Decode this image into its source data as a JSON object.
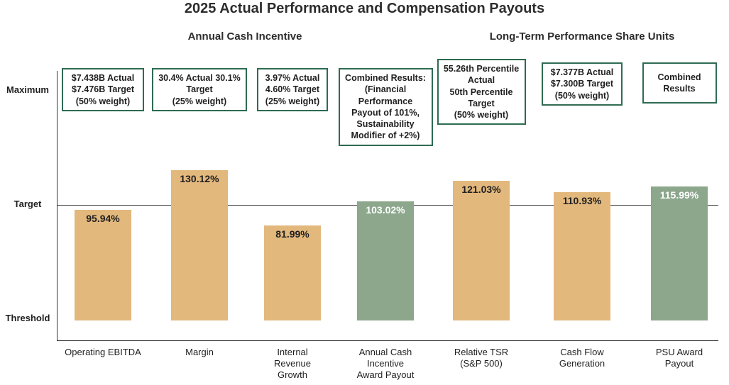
{
  "chart_data": {
    "type": "bar",
    "title": "2025 Actual Performance and Compensation Payouts",
    "groups": [
      {
        "label": "Annual Cash Incentive",
        "bar_categories": [
          "Operating EBITDA",
          "Margin",
          "Internal Revenue Growth",
          "Annual Cash Incentive Award Payout"
        ]
      },
      {
        "label": "Long-Term Performance Share Units",
        "bar_categories": [
          "Relative TSR (S&P 500)",
          "Cash Flow Generation",
          "PSU Award Payout"
        ]
      }
    ],
    "y_axis": {
      "tick_labels": [
        "Maximum",
        "Target",
        "Threshold"
      ]
    },
    "value_axis_mapping": {
      "threshold": 0,
      "target": 100,
      "maximum": 200
    },
    "target_line_at_pct": 100,
    "grid": "off",
    "legend": "none",
    "bars": [
      {
        "category": "Operating EBITDA",
        "value": 95.94,
        "value_label": "95.94%",
        "color": "tan",
        "annotation": "$7.438B Actual\n$7.476B Target\n(50% weight)"
      },
      {
        "category": "Margin",
        "value": 130.12,
        "value_label": "130.12%",
        "color": "tan",
        "annotation": "30.4% Actual 30.1%\nTarget\n(25% weight)"
      },
      {
        "category": "Internal\nRevenue\nGrowth",
        "value": 81.99,
        "value_label": "81.99%",
        "color": "tan",
        "annotation": "3.97% Actual\n4.60% Target\n(25% weight)"
      },
      {
        "category": "Annual Cash\nIncentive\nAward Payout",
        "value": 103.02,
        "value_label": "103.02%",
        "color": "green",
        "annotation": "Combined Results:\n(Financial\nPerformance\nPayout of 101%,\nSustainability\nModifier of +2%)"
      },
      {
        "category": "Relative TSR\n(S&P 500)",
        "value": 121.03,
        "value_label": "121.03%",
        "color": "tan",
        "annotation": "55.26th Percentile\nActual\n50th Percentile\nTarget\n(50% weight)"
      },
      {
        "category": "Cash Flow\nGeneration",
        "value": 110.93,
        "value_label": "110.93%",
        "color": "tan",
        "annotation": "$7.377B Actual\n$7.300B Target\n(50% weight)"
      },
      {
        "category": "PSU Award\nPayout",
        "value": 115.99,
        "value_label": "115.99%",
        "color": "green",
        "annotation": "Combined\nResults"
      }
    ],
    "colors": {
      "tan": "#E2B87D",
      "green": "#8CA78C",
      "box_border": "#2E6B52",
      "target_line": "#4d4d4d",
      "axis": "#333333"
    }
  }
}
